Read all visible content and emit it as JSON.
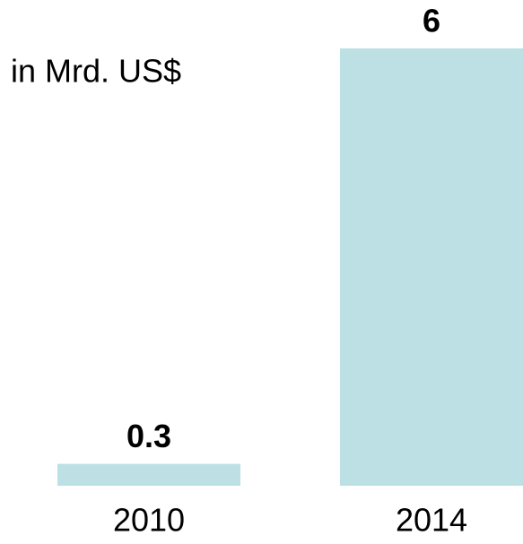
{
  "chart_data": {
    "type": "bar",
    "subtitle": "in Mrd. US$",
    "categories": [
      "2010",
      "2014"
    ],
    "values": [
      0.3,
      6
    ],
    "color": "#bde0e4"
  }
}
